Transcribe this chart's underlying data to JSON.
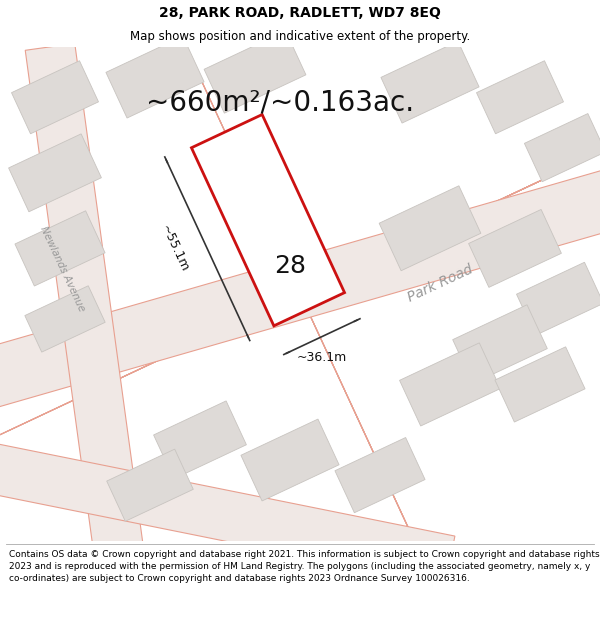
{
  "title": "28, PARK ROAD, RADLETT, WD7 8EQ",
  "subtitle": "Map shows position and indicative extent of the property.",
  "area_text": "~660m²/~0.163ac.",
  "label_number": "28",
  "dim_width": "~36.1m",
  "dim_height": "~55.1m",
  "footer": "Contains OS data © Crown copyright and database right 2021. This information is subject to Crown copyright and database rights 2023 and is reproduced with the permission of HM Land Registry. The polygons (including the associated geometry, namely x, y co-ordinates) are subject to Crown copyright and database rights 2023 Ordnance Survey 100026316.",
  "bg_color": "#f7f4f2",
  "plot_fill": "#ffffff",
  "plot_edge": "#cc1111",
  "road_label": "Park Road",
  "road2_label": "Newlands Avenue",
  "road_line_color": "#e8a090",
  "block_fill": "#dedad7",
  "block_edge": "#c8c4c0",
  "street_fill": "#f0e8e5",
  "dim_line_color": "#333333",
  "text_color": "#111111",
  "header_fontsize": 10,
  "subtitle_fontsize": 8.5,
  "area_fontsize": 20,
  "label_fontsize": 18,
  "dim_fontsize": 9,
  "footer_fontsize": 6.5
}
